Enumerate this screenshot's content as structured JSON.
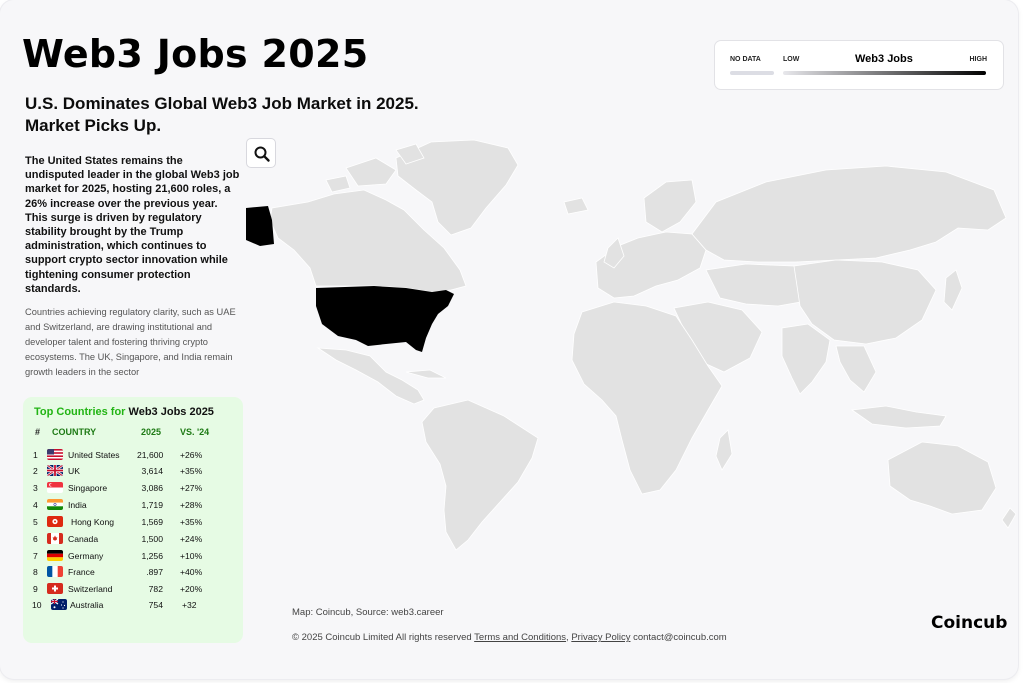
{
  "header": {
    "title": "Web3 Jobs 2025",
    "subtitle": "U.S. Dominates Global Web3 Job Market in 2025. Market Picks Up.",
    "lead": "The United States remains the undisputed leader in the global Web3 job market for 2025, hosting 21,600 roles, a 26% increase over the previous year. This surge is driven by regulatory stability brought by the Trump administration, which continues to support crypto sector innovation while tightening consumer protection standards.",
    "note": "Countries achieving regulatory clarity, such as UAE and Switzerland, are drawing institutional and developer talent and fostering thriving crypto ecosystems. The UK, Singapore, and India remain growth leaders in the sector"
  },
  "legend": {
    "no_data": "NO DATA",
    "low": "LOW",
    "title": "Web3 Jobs",
    "high": "HIGH",
    "colors": {
      "no_data": "#dcdde4",
      "low": "#e8e8ec",
      "high": "#000000"
    }
  },
  "map": {
    "search_icon": "search-icon",
    "land_color": "#e2e2e2",
    "highlight_color": "#000000",
    "highlighted": [
      "United States"
    ]
  },
  "table": {
    "title_green": "Top Countries for",
    "title_black": "Web3 Jobs 2025",
    "headers": {
      "rank": "#",
      "country": "COUNTRY",
      "year": "2025",
      "change": "VS. '24"
    },
    "rows": [
      {
        "rank": "1",
        "flag": "us-flag-icon",
        "country": "United States",
        "value": "21,600",
        "change": "+26%"
      },
      {
        "rank": "2",
        "flag": "uk-flag-icon",
        "country": "UK",
        "value": "3,614",
        "change": "+35%"
      },
      {
        "rank": "3",
        "flag": "singapore-flag-icon",
        "country": "Singapore",
        "value": "3,086",
        "change": "+27%"
      },
      {
        "rank": "4",
        "flag": "india-flag-icon",
        "country": "India",
        "value": "1,719",
        "change": "+28%"
      },
      {
        "rank": "5",
        "flag": "hong-kong-flag-icon",
        "country": "Hong Kong",
        "value": "1,569",
        "change": "+35%"
      },
      {
        "rank": "6",
        "flag": "canada-flag-icon",
        "country": "Canada",
        "value": "1,500",
        "change": "+24%"
      },
      {
        "rank": "7",
        "flag": "germany-flag-icon",
        "country": "Germany",
        "value": "1,256",
        "change": "+10%"
      },
      {
        "rank": "8",
        "flag": "france-flag-icon",
        "country": "France",
        "value": ".897",
        "change": "+40%"
      },
      {
        "rank": "9",
        "flag": "switzerland-flag-icon",
        "country": "Switzerland",
        "value": "782",
        "change": "+20%"
      },
      {
        "rank": "10",
        "flag": "australia-flag-icon",
        "country": "Australia",
        "value": "754",
        "change": "+32"
      }
    ]
  },
  "footer": {
    "source": "Map:  Coincub, Source: web3.career",
    "copyright": "© 2025 Coincub Limited  All rights reserved",
    "terms": "Terms and Conditions",
    "privacy": "Privacy Policy",
    "contact": "contact@coincub.com",
    "brand": "Coincub"
  }
}
